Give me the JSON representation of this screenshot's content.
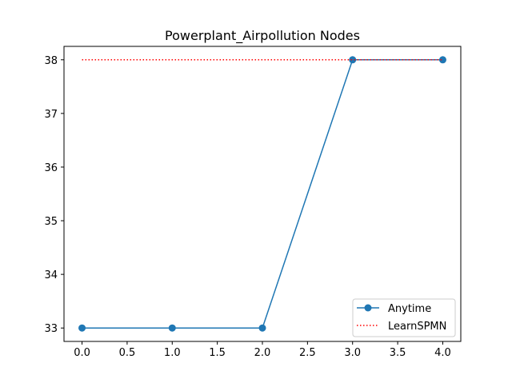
{
  "chart_data": {
    "type": "line",
    "title": "Powerplant_Airpollution Nodes",
    "xlabel": "",
    "ylabel": "",
    "xlim": [
      -0.2,
      4.2
    ],
    "ylim": [
      32.75,
      38.25
    ],
    "xticks": [
      0.0,
      0.5,
      1.0,
      1.5,
      2.0,
      2.5,
      3.0,
      3.5,
      4.0
    ],
    "xtick_labels": [
      "0.0",
      "0.5",
      "1.0",
      "1.5",
      "2.0",
      "2.5",
      "3.0",
      "3.5",
      "4.0"
    ],
    "yticks": [
      33,
      34,
      35,
      36,
      37,
      38
    ],
    "ytick_labels": [
      "33",
      "34",
      "35",
      "36",
      "37",
      "38"
    ],
    "grid": false,
    "legend_position": "lower-right",
    "series": [
      {
        "name": "Anytime",
        "color": "#1f77b4",
        "style": "solid",
        "marker": "circle",
        "x": [
          0,
          1,
          2,
          3,
          4
        ],
        "y": [
          33,
          33,
          33,
          38,
          38
        ]
      },
      {
        "name": "LearnSPMN",
        "color": "#ff0000",
        "style": "dotted",
        "marker": "none",
        "x": [
          0,
          4
        ],
        "y": [
          38,
          38
        ]
      }
    ]
  }
}
